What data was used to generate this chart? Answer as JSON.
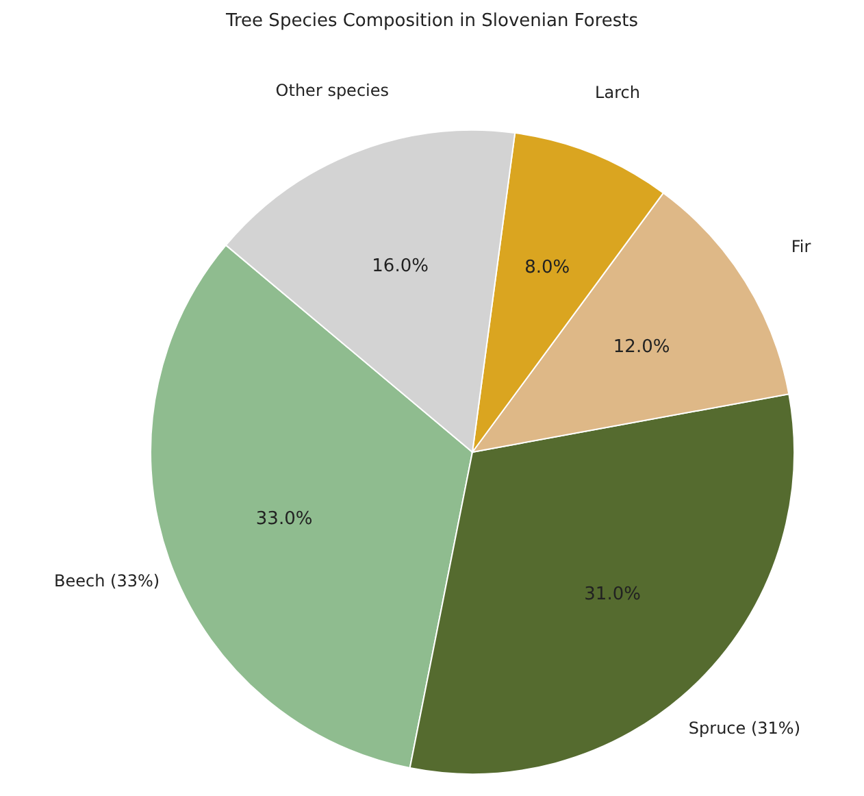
{
  "chart_data": {
    "type": "pie",
    "title": "Tree Species Composition in Slovenian Forests",
    "categories": [
      "Beech (33%)",
      "Spruce (31%)",
      "Fir",
      "Larch",
      "Other species"
    ],
    "values": [
      33,
      31,
      12,
      8,
      16
    ],
    "colors": [
      "#8fbc8f",
      "#556b2f",
      "#deb887",
      "#daa520",
      "#d3d3d3"
    ],
    "value_labels": [
      "33.0%",
      "31.0%",
      "12.0%",
      "8.0%",
      "16.0%"
    ]
  }
}
